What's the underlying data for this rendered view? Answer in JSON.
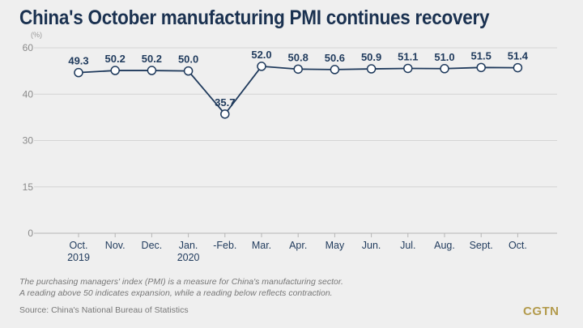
{
  "chart_data": {
    "type": "line",
    "title": "China's October manufacturing PMI continues recovery",
    "unit_label": "(%)",
    "xlabel": "",
    "ylabel": "(%)",
    "y_ticks": [
      60,
      40,
      30,
      15,
      0
    ],
    "ylim": [
      0,
      60
    ],
    "grid": true,
    "categories": [
      [
        "Oct.",
        "2019"
      ],
      [
        "Nov.",
        ""
      ],
      [
        "Dec.",
        ""
      ],
      [
        "Jan.",
        "2020"
      ],
      [
        "-Feb.",
        ""
      ],
      [
        "Mar.",
        ""
      ],
      [
        "Apr.",
        ""
      ],
      [
        "May",
        ""
      ],
      [
        "Jun.",
        ""
      ],
      [
        "Jul.",
        ""
      ],
      [
        "Aug.",
        ""
      ],
      [
        "Sept.",
        ""
      ],
      [
        "Oct.",
        ""
      ]
    ],
    "series": [
      {
        "name": "Manufacturing PMI",
        "values": [
          49.3,
          50.2,
          50.2,
          50.0,
          35.7,
          52.0,
          50.8,
          50.6,
          50.9,
          51.1,
          51.0,
          51.5,
          51.4
        ],
        "labels": [
          "49.3",
          "50.2",
          "50.2",
          "50.0",
          "35.7",
          "52.0",
          "50.8",
          "50.6",
          "50.9",
          "51.1",
          "51.0",
          "51.5",
          "51.4"
        ]
      }
    ],
    "line_color": "#1f3a5c",
    "marker_fill": "#ffffff"
  },
  "note_lines": [
    "The purchasing managers' index (PMI) is a measure for China's manufacturing sector.",
    "A reading above 50 indicates expansion, while a reading below reflects contraction."
  ],
  "source": "Source: China's National Bureau of Statistics",
  "logo": "CGTN"
}
